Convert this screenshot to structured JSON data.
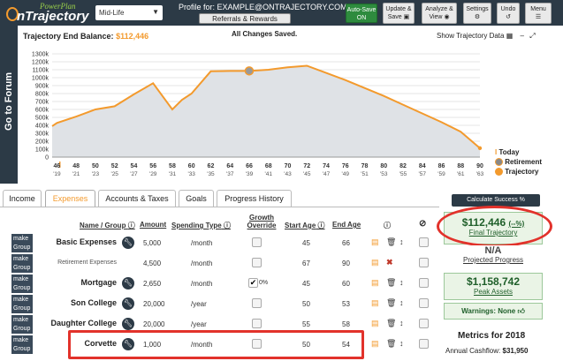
{
  "app": {
    "brand_top": "PowerPlan",
    "brand_bottom": "nTrajectory"
  },
  "topbar": {
    "scenario_select": "Mid-Life",
    "profile_label": "Profile for: EXAMPLE@ONTRAJECTORY.COM",
    "referrals_button": "Referrals & Rewards",
    "autosave_line1": "Auto-Save",
    "autosave_line2": "ON",
    "update_save_line1": "Update &",
    "update_save_line2": "Save",
    "analyze_line1": "Analyze &",
    "analyze_line2": "View",
    "settings": "Settings",
    "undo": "Undo",
    "menu": "Menu"
  },
  "sidebar": {
    "go_to_forum": "Go to Forum"
  },
  "chart_header": {
    "end_balance_label": "Trajectory End Balance:",
    "end_balance_value": "$112,446",
    "saved_status": "All Changes Saved.",
    "show_data": "Show Trajectory Data"
  },
  "chart_data": {
    "type": "area",
    "x": [
      46,
      48,
      50,
      52,
      54,
      56,
      58,
      60,
      62,
      64,
      66,
      68,
      70,
      72,
      74,
      76,
      78,
      80,
      82,
      84,
      86,
      88,
      90
    ],
    "x_years": [
      "'19",
      "'21",
      "'23",
      "'25",
      "'27",
      "'29",
      "'31",
      "'33",
      "'35",
      "'37",
      "'39",
      "'41",
      "'43",
      "'45",
      "'47",
      "'49",
      "'51",
      "'53",
      "'55",
      "'57",
      "'59",
      "'61",
      "'63"
    ],
    "y_ticks": [
      "0",
      "100k",
      "200k",
      "300k",
      "400k",
      "500k",
      "600k",
      "700k",
      "800k",
      "900k",
      "1000k",
      "1100k",
      "1200k",
      "1300k"
    ],
    "ylim": [
      0,
      1300000
    ],
    "series": [
      {
        "x": [
          45.5,
          46,
          48,
          50,
          52,
          54,
          56,
          58,
          59,
          60,
          62,
          64,
          66,
          68,
          70,
          72,
          74,
          76,
          78,
          80,
          82,
          84,
          86,
          88,
          90
        ],
        "y": [
          390000,
          430000,
          510000,
          600000,
          640000,
          790000,
          930000,
          600000,
          720000,
          800000,
          1080000,
          1085000,
          1085000,
          1100000,
          1130000,
          1150000,
          1060000,
          970000,
          870000,
          770000,
          660000,
          550000,
          440000,
          320000,
          112446
        ]
      }
    ],
    "legend": [
      "Today",
      "Retirement",
      "Trajectory"
    ],
    "colors": {
      "line": "#f39a2d",
      "fill": "#dfe2e6"
    }
  },
  "tabs": [
    "Income",
    "Expenses",
    "Accounts & Taxes",
    "Goals",
    "Progress History"
  ],
  "table": {
    "headers": {
      "name": "Name / Group",
      "amount": "Amount",
      "spending_type": "Spending Type",
      "growth_override_1": "Growth",
      "growth_override_2": "Override",
      "start_age": "Start Age",
      "end_age": "End Age"
    },
    "make_group_1": "make",
    "make_group_2": "Group",
    "rows": [
      {
        "name": "Basic Expenses",
        "amount": "5,000",
        "type": "/month",
        "override": "",
        "start": "45",
        "end": "66",
        "sub": false
      },
      {
        "name": "Retirement Expenses",
        "amount": "4,500",
        "type": "/month",
        "override": "",
        "start": "67",
        "end": "90",
        "sub": true
      },
      {
        "name": "Mortgage",
        "amount": "2,650",
        "type": "/month",
        "override": "0%",
        "start": "45",
        "end": "60",
        "sub": false
      },
      {
        "name": "Son College",
        "amount": "20,000",
        "type": "/year",
        "override": "",
        "start": "50",
        "end": "53",
        "sub": false
      },
      {
        "name": "Daughter College",
        "amount": "20,000",
        "type": "/year",
        "override": "",
        "start": "55",
        "end": "58",
        "sub": false
      },
      {
        "name": "Corvette",
        "amount": "1,000",
        "type": "/month",
        "override": "",
        "start": "50",
        "end": "54",
        "sub": false
      }
    ]
  },
  "right_panel": {
    "calc_button": "Calculate Success %",
    "final_value": "$112,446",
    "final_pct": "(--%)",
    "final_label": "Final Trajectory",
    "projected_value": "N/A",
    "projected_label": "Projected Progress",
    "peak_value": "$1,158,742",
    "peak_label": "Peak Assets",
    "warnings": "Warnings: None",
    "metrics_title": "Metrics for 2018",
    "annual_cashflow_label": "Annual Cashflow:",
    "annual_cashflow_value": "$31,950"
  }
}
